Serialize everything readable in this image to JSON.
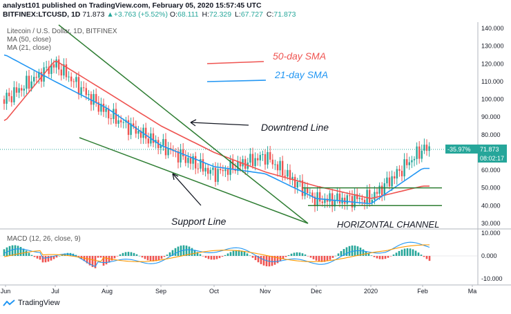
{
  "header": {
    "publisher_line": "analyst101 published on TradingView.com, February 05, 2020 15:57:45 UTC",
    "symbol": "BITFINEX:LTCUSD, 1D",
    "last": "71.873",
    "change": "+3.763 (+5.52%)",
    "open_label": "O:",
    "open": "68.111",
    "high_label": "H:",
    "high": "72.329",
    "low_label": "L:",
    "low": "67.727",
    "close_label": "C:",
    "close": "71.873"
  },
  "legend": {
    "series_title": "Litecoin / U.S. Dollar, 1D, BITFINEX",
    "ma50": "MA (50, close)",
    "ma21": "MA (21, close)"
  },
  "annotations": {
    "sma50": "50-day SMA",
    "sma21": "21-day SMA",
    "downtrend": "Downtrend Line",
    "support": "Support Line",
    "channel": "HORIZONTAL CHANNEL"
  },
  "price_tags": {
    "pct": "-35.97%",
    "last": "71.873",
    "countdown": "08:02:17"
  },
  "macd": {
    "title": "MACD (12, 26, close, 9)",
    "ticks": [
      "10.000",
      "0.000",
      "-10.000"
    ]
  },
  "footer": {
    "brand": "TradingView"
  },
  "colors": {
    "sma50": "#ef5350",
    "sma21": "#2196f3",
    "trend": "#2e7d32",
    "up": "#26a69a",
    "down": "#ef5350",
    "signal": "#ff9800"
  },
  "chart_data": {
    "type": "line",
    "title": "Litecoin / U.S. Dollar, 1D, BITFINEX",
    "y_ticks": [
      30,
      40,
      50,
      60,
      70,
      80,
      90,
      100,
      110,
      120,
      130,
      140
    ],
    "ylim": [
      28,
      142
    ],
    "x_tick_labels": [
      "Jun",
      "Jul",
      "Aug",
      "Sep",
      "Oct",
      "Nov",
      "Dec",
      "2020",
      "Feb",
      "Ma"
    ],
    "x": [
      "Jun",
      "Jul",
      "Aug",
      "Sep",
      "Oct",
      "Nov",
      "Dec",
      "2020",
      "Feb"
    ],
    "series": [
      {
        "name": "Price",
        "values": [
          100,
          120,
          92,
          74,
          58,
          68,
          43,
          44,
          72
        ]
      },
      {
        "name": "MA (50, close)",
        "values": [
          88,
          122,
          104,
          85,
          70,
          59,
          51,
          44,
          51
        ]
      },
      {
        "name": "MA (21, close)",
        "values": [
          125,
          110,
          95,
          74,
          62,
          58,
          44,
          41,
          61
        ]
      }
    ],
    "horizontal_channel": [
      40,
      50
    ],
    "grid": false
  }
}
